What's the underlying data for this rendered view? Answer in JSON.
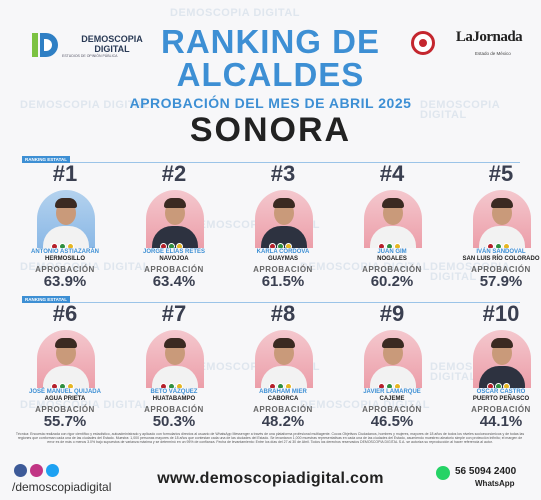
{
  "watermark": "DEMOSCOPIA DIGITAL",
  "logo_left": {
    "name_line1": "DEMOSCOPIA",
    "name_line2": "DIGITAL",
    "subtitle": "ESTUDIOS DE OPINIÓN PÚBLICA"
  },
  "logo_right": {
    "name": "LaJornada",
    "subtitle": "Estado de México"
  },
  "title": {
    "line1": "RANKING DE",
    "line2": "ALCALDES",
    "subtitle": "APROBACIÓN DEL MES DE ABRIL 2025",
    "state": "SONORA"
  },
  "section_label": "RANKING ESTATAL",
  "approval_label": "APROBACIÓN",
  "rows": [
    [
      {
        "rank": "#1",
        "name": "ANTONIO ASTIAZARÁN",
        "city": "HERMOSILLO",
        "pct": "63.9%",
        "photo_bg": "blue",
        "suit": "light"
      },
      {
        "rank": "#2",
        "name": "JORGE ELÍAS RETES",
        "city": "NAVOJOA",
        "pct": "63.4%",
        "photo_bg": "pink",
        "suit": "dark"
      },
      {
        "rank": "#3",
        "name": "KARLA CÓRDOVA",
        "city": "GUAYMAS",
        "pct": "61.5%",
        "photo_bg": "pink",
        "suit": "dark"
      },
      {
        "rank": "#4",
        "name": "JUAN GIM",
        "city": "NOGALES",
        "pct": "60.2%",
        "photo_bg": "pink",
        "suit": "light"
      },
      {
        "rank": "#5",
        "name": "IVÁN SANDOVAL",
        "city": "SAN LUIS RÍO COLORADO",
        "pct": "57.9%",
        "photo_bg": "pink",
        "suit": "light"
      }
    ],
    [
      {
        "rank": "#6",
        "name": "JOSÉ MANUEL QUIJADA",
        "city": "AGUA PRIETA",
        "pct": "55.7%",
        "photo_bg": "pink",
        "suit": "light"
      },
      {
        "rank": "#7",
        "name": "BETO VÁZQUEZ",
        "city": "HUATABAMPO",
        "pct": "50.3%",
        "photo_bg": "pink",
        "suit": "light"
      },
      {
        "rank": "#8",
        "name": "ABRAHAM MIER",
        "city": "CABORCA",
        "pct": "48.2%",
        "photo_bg": "pink",
        "suit": "light"
      },
      {
        "rank": "#9",
        "name": "JAVIER LAMARQUE",
        "city": "CAJEME",
        "pct": "46.5%",
        "photo_bg": "pink",
        "suit": "light"
      },
      {
        "rank": "#10",
        "name": "OSCAR CASTRO",
        "city": "PUERTO PEÑASCO",
        "pct": "44.1%",
        "photo_bg": "pink",
        "suit": "dark"
      }
    ]
  ],
  "fineprint": "Técnica: Encuesta realizada con rigor científico y estadístico, autoadministrado y aplicado con formularios directos al usuario de WhatsApp Messenger a través de una plataforma profesional multiagente. Cocos Objetivos Ciudadanos, hombres y mujeres, mayores de 18 años de todos los niveles socioeconómicos y de todas las regiones que conforman cada una de las ciudades del Estado. Muestra: 1,000 personas mayores de 18 años que contestan cada una de las ciudades del Estado. Se levantaron 1,000 muestras representativas en cada una de las ciudades del Estado, asumiendo muestreo aleatorio simple con protección infinito; el margen de error es de más o menos 3.0% bajo supuestos de varianza máxima y se determinó en un 95% de confianza. Fecha de levantamiento: Entre los días del 27 al 30 de Abril. Todos los derechos reservados DEMOSCOPIA DIGITAL S.A. se autoriza su reproducción al hacer referencia al autor.",
  "footer": {
    "handle": "/demoscopiadigital",
    "website": "www.demoscopiadigital.com",
    "phone": "56 5094 2400",
    "whatsapp_label": "WhatsApp"
  }
}
